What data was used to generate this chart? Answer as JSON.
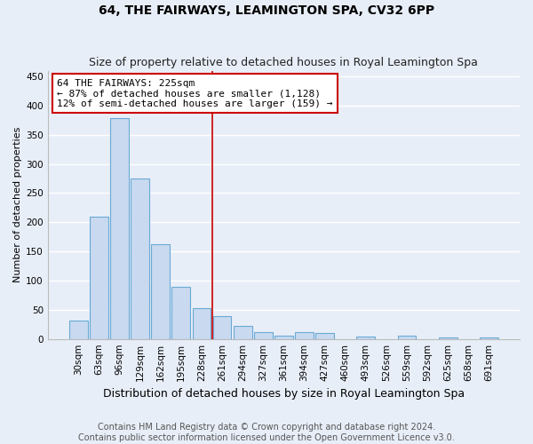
{
  "title": "64, THE FAIRWAYS, LEAMINGTON SPA, CV32 6PP",
  "subtitle": "Size of property relative to detached houses in Royal Leamington Spa",
  "xlabel": "Distribution of detached houses by size in Royal Leamington Spa",
  "ylabel": "Number of detached properties",
  "footer_line1": "Contains HM Land Registry data © Crown copyright and database right 2024.",
  "footer_line2": "Contains public sector information licensed under the Open Government Licence v3.0.",
  "bar_labels": [
    "30sqm",
    "63sqm",
    "96sqm",
    "129sqm",
    "162sqm",
    "195sqm",
    "228sqm",
    "261sqm",
    "294sqm",
    "327sqm",
    "361sqm",
    "394sqm",
    "427sqm",
    "460sqm",
    "493sqm",
    "526sqm",
    "559sqm",
    "592sqm",
    "625sqm",
    "658sqm",
    "691sqm"
  ],
  "bar_values": [
    32,
    210,
    378,
    275,
    163,
    90,
    53,
    39,
    23,
    12,
    6,
    12,
    10,
    0,
    4,
    0,
    5,
    0,
    2,
    0,
    2
  ],
  "bar_color": "#c8d9f0",
  "bar_edge_color": "#6aaad4",
  "annotation_text_line1": "64 THE FAIRWAYS: 225sqm",
  "annotation_text_line2": "← 87% of detached houses are smaller (1,128)",
  "annotation_text_line3": "12% of semi-detached houses are larger (159) →",
  "annotation_box_facecolor": "#ffffff",
  "annotation_box_edgecolor": "#cc0000",
  "vline_bar_index": 6,
  "vline_color": "#cc0000",
  "ylim": [
    0,
    460
  ],
  "yticks": [
    0,
    50,
    100,
    150,
    200,
    250,
    300,
    350,
    400,
    450
  ],
  "bg_color": "#e8eef8",
  "grid_color": "#ffffff",
  "title_fontsize": 10,
  "subtitle_fontsize": 9,
  "ylabel_fontsize": 8,
  "xlabel_fontsize": 9,
  "tick_fontsize": 7.5,
  "footer_fontsize": 7,
  "annotation_fontsize": 8
}
